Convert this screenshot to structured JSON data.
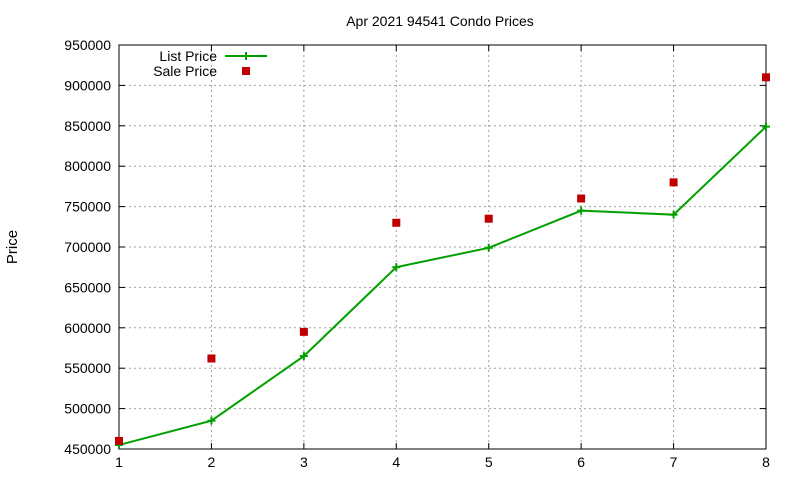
{
  "chart_data": {
    "type": "line",
    "title": "Apr 2021 94541 Condo Prices",
    "xlabel": "",
    "ylabel": "Price",
    "x": [
      1,
      2,
      3,
      4,
      5,
      6,
      7,
      8
    ],
    "xlim": [
      1,
      8
    ],
    "ylim": [
      450000,
      950000
    ],
    "x_ticks": [
      "1",
      "2",
      "3",
      "4",
      "5",
      "6",
      "7",
      "8"
    ],
    "y_ticks": [
      "450000",
      "500000",
      "550000",
      "600000",
      "650000",
      "700000",
      "750000",
      "800000",
      "850000",
      "900000",
      "950000"
    ],
    "grid": true,
    "legend_position": "top-left",
    "series": [
      {
        "name": "List Price",
        "style": "line-with-plus-markers",
        "color": "#00a000",
        "values": [
          455000,
          485000,
          565000,
          675000,
          699000,
          745000,
          740000,
          849000
        ]
      },
      {
        "name": "Sale Price",
        "style": "square-markers",
        "color": "#c00000",
        "values": [
          460000,
          562000,
          595000,
          730000,
          735000,
          760000,
          780000,
          910000
        ]
      }
    ]
  }
}
